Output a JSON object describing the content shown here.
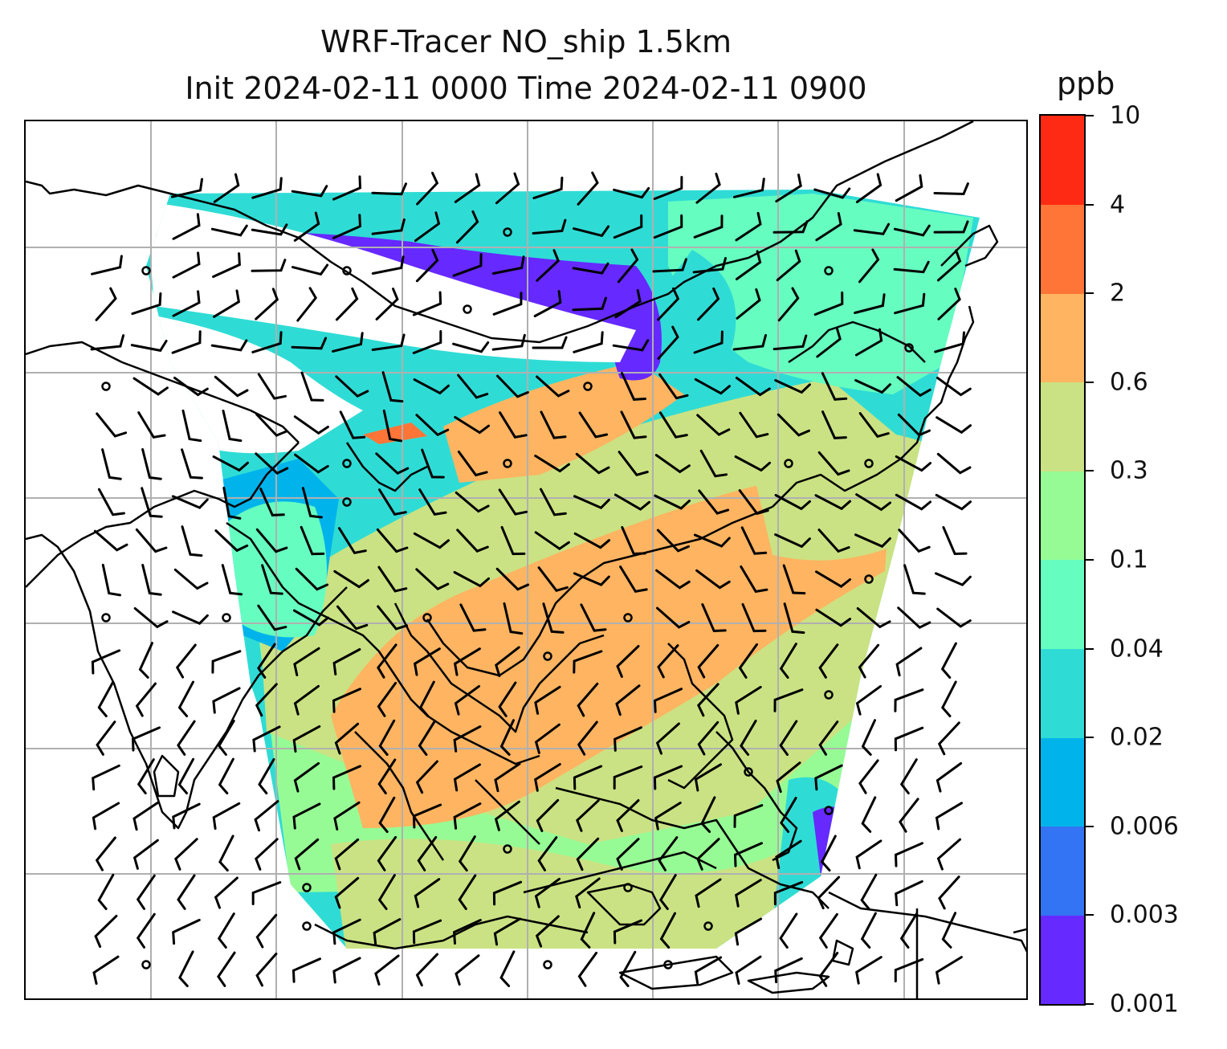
{
  "title": {
    "line1": "WRF-Tracer NO_ship 1.5km",
    "line2": "Init 2024-02-11 0000 Time 2024-02-11 0900"
  },
  "colorbar": {
    "unit": "ppb",
    "levels": [
      "0.001",
      "0.003",
      "0.006",
      "0.02",
      "0.04",
      "0.1",
      "0.3",
      "0.6",
      "2",
      "4",
      "10"
    ],
    "colors": [
      "#6629ff",
      "#3374f5",
      "#00b4eb",
      "#2fdcd5",
      "#66fdc0",
      "#97fb95",
      "#cae283",
      "#feb461",
      "#ff7537",
      "#ff2a14"
    ]
  },
  "map": {
    "basemap": "coastlines",
    "gridlines": true,
    "overlay": "wind-barbs",
    "fill_color_missing": "#ffffff"
  }
}
